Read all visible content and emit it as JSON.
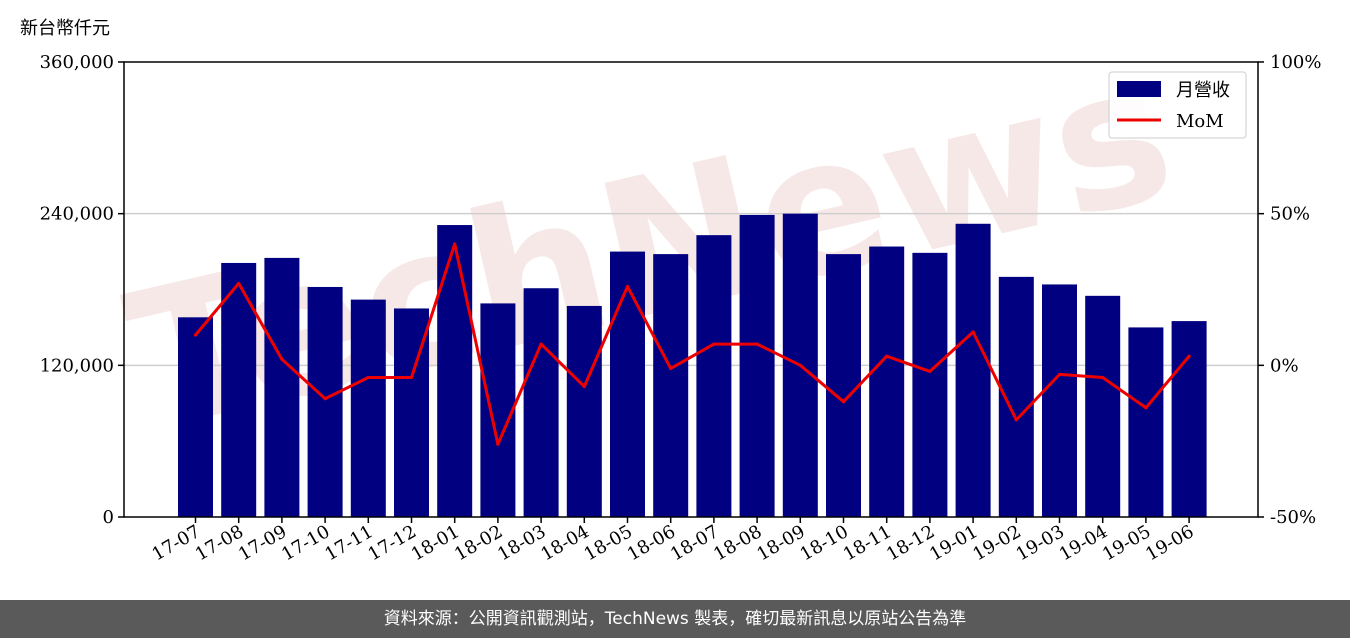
{
  "chart_data": {
    "type": "bar",
    "y_unit_label": "新台幣仟元",
    "categories": [
      "17-07",
      "17-08",
      "17-09",
      "17-10",
      "17-11",
      "17-12",
      "18-01",
      "18-02",
      "18-03",
      "18-04",
      "18-05",
      "18-06",
      "18-07",
      "18-08",
      "18-09",
      "18-10",
      "18-11",
      "18-12",
      "19-01",
      "19-02",
      "19-03",
      "19-04",
      "19-05",
      "19-06"
    ],
    "series": [
      {
        "name": "月營收",
        "type": "bar",
        "axis": "left",
        "color": "#000080",
        "values": [
          158000,
          201000,
          205000,
          182000,
          172000,
          165000,
          231000,
          169000,
          181000,
          167000,
          210000,
          208000,
          223000,
          239000,
          240000,
          208000,
          214000,
          209000,
          232000,
          190000,
          184000,
          175000,
          150000,
          155000
        ]
      },
      {
        "name": "MoM",
        "type": "line",
        "axis": "right",
        "color": "#ee0000",
        "values": [
          10,
          27,
          2,
          -11,
          -4,
          -4,
          40,
          -26,
          7,
          -7,
          26,
          -1,
          7,
          7,
          0,
          -12,
          3,
          -2,
          11,
          -18,
          -3,
          -4,
          -14,
          3
        ]
      }
    ],
    "y_left": {
      "min": 0,
      "max": 360000,
      "ticks": [
        "0",
        "120,000",
        "240,000",
        "360,000"
      ]
    },
    "y_right": {
      "min": -50,
      "max": 100,
      "ticks": [
        "-50%",
        "0%",
        "50%",
        "100%"
      ]
    },
    "grid": "horizontal",
    "legend_position": "top-right"
  },
  "watermark": "TechNews",
  "footer": {
    "source_text": "資料來源：公開資訊觀測站，TechNews 製表，確切最新訊息以原站公告為準"
  }
}
